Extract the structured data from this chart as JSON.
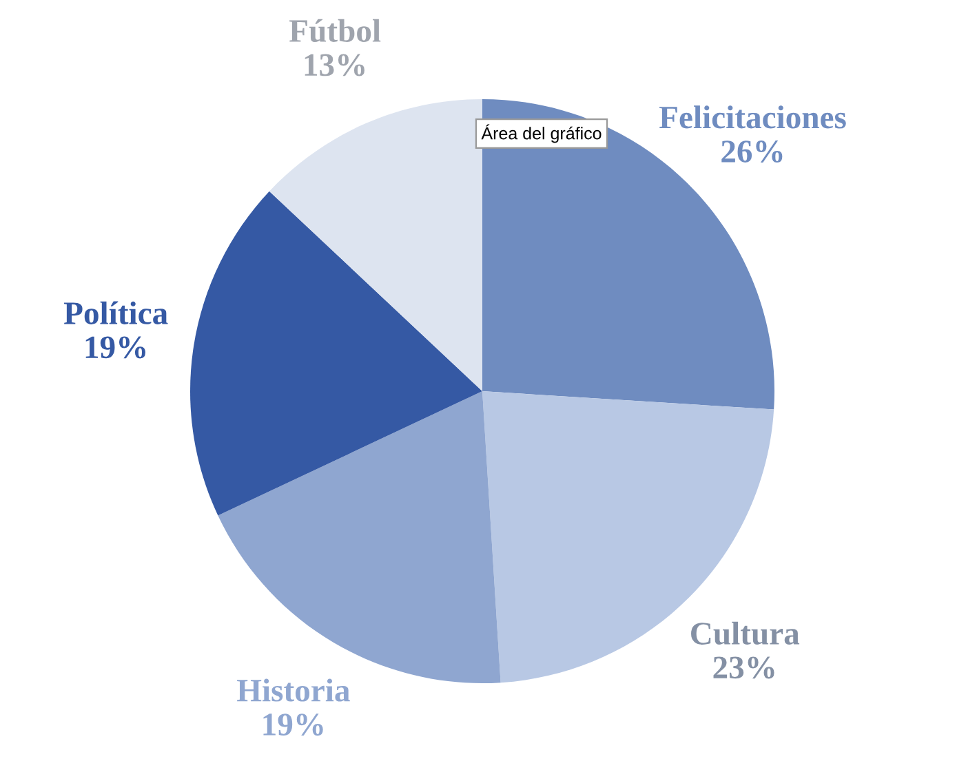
{
  "chart_data": {
    "type": "pie",
    "categories": [
      "Felicitaciones",
      "Cultura",
      "Historia",
      "Política",
      "Fútbol"
    ],
    "values": [
      26,
      23,
      19,
      19,
      13
    ],
    "value_labels": [
      "26%",
      "23%",
      "19%",
      "19%",
      "13%"
    ],
    "colors": [
      "#6f8cc0",
      "#b8c8e4",
      "#8fa6d0",
      "#3559a4",
      "#dde4f0"
    ],
    "annotations": [
      "Área del gráfico"
    ],
    "legend": false
  }
}
